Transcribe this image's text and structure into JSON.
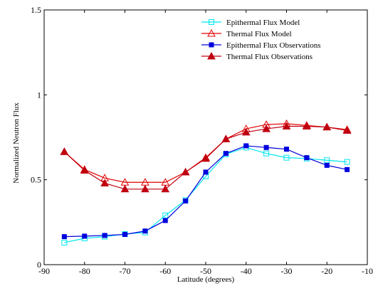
{
  "chart_data": {
    "type": "line",
    "xlabel": "Latitude (degrees)",
    "ylabel": "Normalized Neutron Flux",
    "xlim": [
      -90,
      -10
    ],
    "ylim": [
      0,
      1.5
    ],
    "x_ticks": [
      "-90",
      "-80",
      "-70",
      "-60",
      "-50",
      "-40",
      "-30",
      "-20",
      "-10"
    ],
    "y_ticks": [
      "0",
      "0.5",
      "1",
      "1.5"
    ],
    "grid": false,
    "legend_position": "top-right",
    "x": [
      -85,
      -80,
      -75,
      -70,
      -65,
      -60,
      -55,
      -50,
      -45,
      -40,
      -35,
      -30,
      -25,
      -20,
      -15
    ],
    "series": [
      {
        "name": "Epithermal Flux Model",
        "color": "#00e5ee",
        "marker": "square-open",
        "values": [
          0.13,
          0.155,
          0.165,
          0.18,
          0.19,
          0.29,
          0.38,
          0.52,
          0.65,
          0.69,
          0.655,
          0.63,
          0.625,
          0.615,
          0.605
        ]
      },
      {
        "name": "Thermal Flux Model",
        "color": "#e00000",
        "marker": "triangle-open",
        "values": [
          0.665,
          0.56,
          0.51,
          0.485,
          0.485,
          0.485,
          0.545,
          0.63,
          0.74,
          0.8,
          0.825,
          0.83,
          0.82,
          0.81,
          0.795
        ]
      },
      {
        "name": "Epithermal Flux Observations",
        "color": "#0000dd",
        "marker": "square-filled",
        "values": [
          0.165,
          0.168,
          0.172,
          0.178,
          0.198,
          0.26,
          0.375,
          0.545,
          0.655,
          0.7,
          0.69,
          0.68,
          0.63,
          0.585,
          0.56
        ]
      },
      {
        "name": "Thermal Flux Observations",
        "color": "#c00010",
        "marker": "triangle-filled",
        "values": [
          0.665,
          0.555,
          0.48,
          0.445,
          0.445,
          0.445,
          0.545,
          0.625,
          0.74,
          0.78,
          0.8,
          0.815,
          0.815,
          0.81,
          0.79
        ]
      }
    ]
  }
}
